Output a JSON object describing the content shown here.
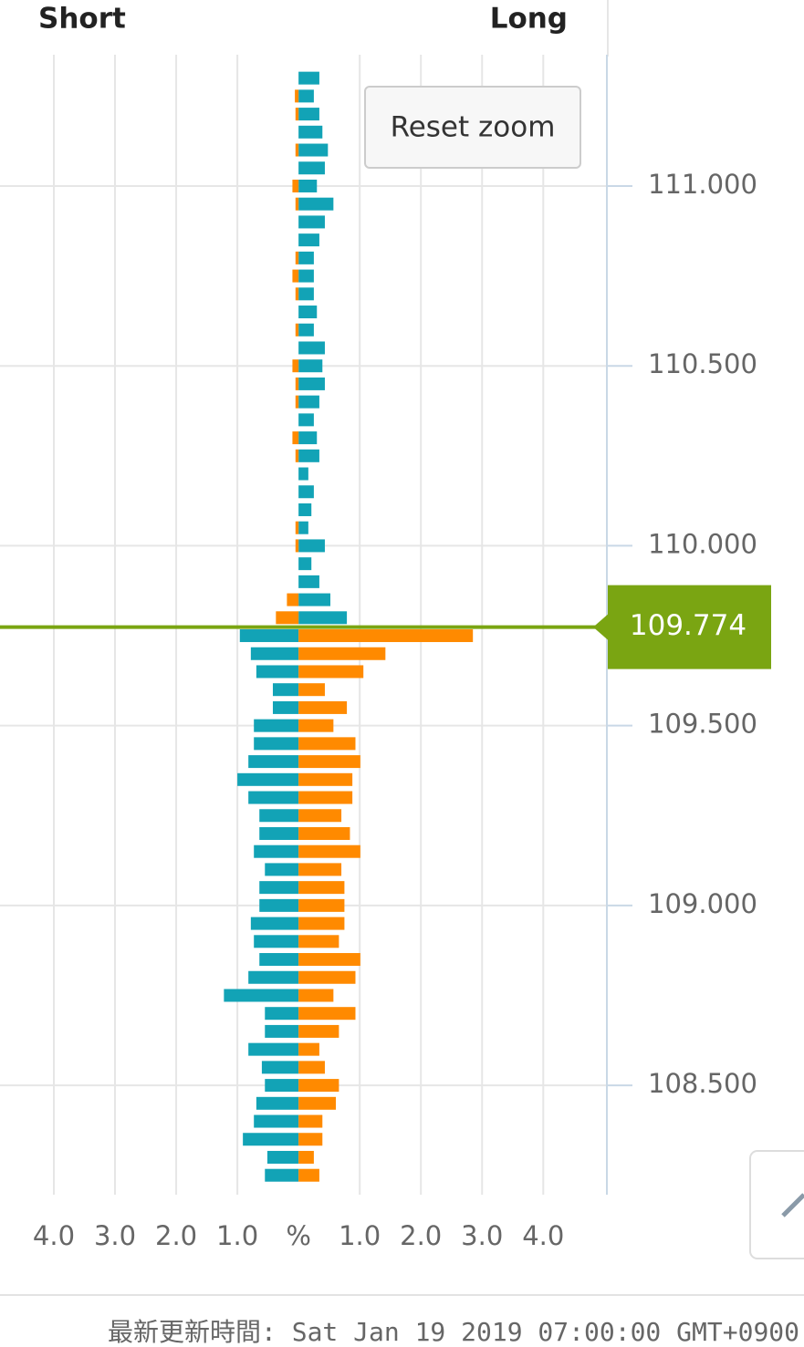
{
  "chart_data": {
    "type": "bar",
    "orientation": "horizontal",
    "left_label": "Short",
    "right_label": "Long",
    "button": "Reset zoom",
    "footer": "最新更新時間: Sat Jan 19 2019 07:00:00 GMT+0900",
    "current_price": 109.774,
    "current_price_color": "#7aa512",
    "y": [
      111.3,
      111.25,
      111.2,
      111.15,
      111.1,
      111.05,
      111,
      110.95,
      110.9,
      110.85,
      110.8,
      110.75,
      110.7,
      110.65,
      110.6,
      110.55,
      110.5,
      110.45,
      110.4,
      110.35,
      110.3,
      110.25,
      110.2,
      110.15,
      110.1,
      110.05,
      110,
      109.95,
      109.9,
      109.85,
      109.8,
      109.75,
      109.7,
      109.65,
      109.6,
      109.55,
      109.5,
      109.45,
      109.4,
      109.35,
      109.3,
      109.25,
      109.2,
      109.15,
      109.1,
      109.05,
      109,
      108.95,
      108.9,
      108.85,
      108.8,
      108.75,
      108.7,
      108.65,
      108.6,
      108.55,
      108.5,
      108.45,
      108.4,
      108.35,
      108.3,
      108.25
    ],
    "series": [
      {
        "color": "#12a3b6",
        "side": "long",
        "values": [
          0.34,
          0.25,
          0.34,
          0.39,
          0.48,
          0.43,
          0.3,
          0.57,
          0.43,
          0.34,
          0.25,
          0.25,
          0.25,
          0.3,
          0.25,
          0.43,
          0.39,
          0.43,
          0.34,
          0.25,
          0.3,
          0.34,
          0.16,
          0.25,
          0.21,
          0.16,
          0.43,
          0.21,
          0.34,
          0.52,
          0.79,
          null,
          null,
          null,
          null,
          null,
          null,
          null,
          null,
          null,
          null,
          null,
          null,
          null,
          null,
          null,
          null,
          null,
          null,
          null,
          null,
          null,
          null,
          null,
          null,
          null,
          null,
          null,
          null,
          null,
          null,
          null
        ]
      },
      {
        "color": "#ff8a00",
        "side": "short",
        "values": [
          null,
          0.06,
          0.05,
          null,
          0.05,
          null,
          0.1,
          0.05,
          null,
          null,
          0.05,
          0.1,
          0.05,
          null,
          0.05,
          null,
          0.1,
          0.05,
          0.05,
          null,
          0.1,
          0.05,
          null,
          null,
          null,
          0.05,
          0.05,
          null,
          null,
          0.19,
          0.37,
          null,
          null,
          null,
          null,
          null,
          null,
          null,
          null,
          null,
          null,
          null,
          null,
          null,
          null,
          null,
          null,
          null,
          null,
          null,
          null,
          null,
          null,
          null,
          null,
          null,
          null,
          null,
          null,
          null,
          null,
          null
        ]
      },
      {
        "color": "#12a3b6",
        "side": "short",
        "values": [
          null,
          null,
          null,
          null,
          null,
          null,
          null,
          null,
          null,
          null,
          null,
          null,
          null,
          null,
          null,
          null,
          null,
          null,
          null,
          null,
          null,
          null,
          null,
          null,
          null,
          null,
          null,
          null,
          null,
          null,
          null,
          0.96,
          0.78,
          0.69,
          0.42,
          0.42,
          0.73,
          0.73,
          0.82,
          1.0,
          0.82,
          0.64,
          0.64,
          0.73,
          0.55,
          0.64,
          0.64,
          0.78,
          0.73,
          0.64,
          0.82,
          1.22,
          0.55,
          0.55,
          0.82,
          0.6,
          0.55,
          0.69,
          0.73,
          0.91,
          0.51,
          0.55
        ]
      },
      {
        "color": "#ff8a00",
        "side": "long",
        "values": [
          null,
          null,
          null,
          null,
          null,
          null,
          null,
          null,
          null,
          null,
          null,
          null,
          null,
          null,
          null,
          null,
          null,
          null,
          null,
          null,
          null,
          null,
          null,
          null,
          null,
          null,
          null,
          null,
          null,
          null,
          null,
          2.85,
          1.42,
          1.06,
          0.43,
          0.79,
          0.57,
          0.93,
          1.01,
          0.88,
          0.88,
          0.7,
          0.84,
          1.01,
          0.7,
          0.75,
          0.75,
          0.75,
          0.66,
          1.01,
          0.93,
          0.57,
          0.93,
          0.66,
          0.34,
          0.43,
          0.66,
          0.61,
          0.39,
          0.39,
          0.25,
          0.34
        ]
      }
    ],
    "xlim": [
      -4.88,
      5.04
    ],
    "xticks": [
      {
        "value": -4,
        "label": "4.0"
      },
      {
        "value": -3,
        "label": "3.0"
      },
      {
        "value": -2,
        "label": "2.0"
      },
      {
        "value": -1,
        "label": "1.0"
      },
      {
        "value": 0,
        "label": "%"
      },
      {
        "value": 1,
        "label": "1.0"
      },
      {
        "value": 2,
        "label": "2.0"
      },
      {
        "value": 3,
        "label": "3.0"
      },
      {
        "value": 4,
        "label": "4.0"
      }
    ],
    "ylim": [
      108.196,
      111.365
    ],
    "yticks": [
      {
        "value": 108.5,
        "label": "108.500"
      },
      {
        "value": 109,
        "label": "109.000"
      },
      {
        "value": 109.5,
        "label": "109.500"
      },
      {
        "value": 110,
        "label": "110.000"
      },
      {
        "value": 110.5,
        "label": "110.500"
      },
      {
        "value": 111,
        "label": "111.000"
      }
    ],
    "grid": true
  }
}
